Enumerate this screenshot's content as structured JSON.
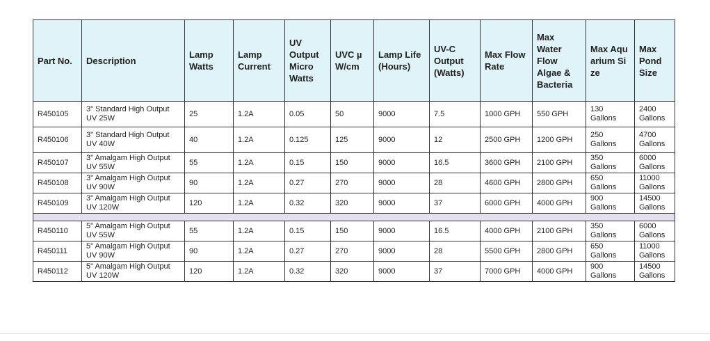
{
  "table": {
    "header": [
      "Part No.",
      "Description",
      "Lamp Watts",
      "Lamp Current",
      "UV Output Micro Watts",
      "UVC µW/cm",
      "Lamp Life (Hours)",
      "UV-C Output (Watts)",
      "Max Flow Rate",
      "Max Water Flow Algae & Bacteria",
      "Max Aquarium Size",
      "Max Pond Size"
    ],
    "groups": [
      [
        [
          "R450105",
          "3\" Standard High Output UV 25W",
          "25",
          "1.2A",
          "0.05",
          "50",
          "9000",
          "7.5",
          "1000 GPH",
          "550 GPH",
          "130 Gallons",
          "2400 Gallons"
        ],
        [
          "R450106",
          "3\" Standard High Output UV 40W",
          "40",
          "1.2A",
          "0.125",
          "125",
          "9000",
          "12",
          "2500 GPH",
          "1200 GPH",
          "250 Gallons",
          "4700 Gallons"
        ],
        [
          "R450107",
          "3\" Amalgam High Output UV 55W",
          "55",
          "1.2A",
          "0.15",
          "150",
          "9000",
          "16.5",
          "3600 GPH",
          "2100 GPH",
          "350 Gallons",
          "6000 Gallons"
        ],
        [
          "R450108",
          "3\" Amalgam High Output UV 90W",
          "90",
          "1.2A",
          "0.27",
          "270",
          "9000",
          "28",
          "4600 GPH",
          "2800 GPH",
          "650 Gallons",
          "11000 Gallons"
        ],
        [
          "R450109",
          "3\" Amalgam High Output UV 120W",
          "120",
          "1.2A",
          "0.32",
          "320",
          "9000",
          "37",
          "6000 GPH",
          "4000 GPH",
          "900 Gallons",
          "14500 Gallons"
        ]
      ],
      [
        [
          "R450110",
          "5\" Amalgam High Output UV 55W",
          "55",
          "1.2A",
          "0.15",
          "150",
          "9000",
          "16.5",
          "4000 GPH",
          "2100 GPH",
          "350 Gallons",
          "6000 Gallons"
        ],
        [
          "R450111",
          "5\" Amalgam High Output UV 90W",
          "90",
          "1.2A",
          "0.27",
          "270",
          "9000",
          "28",
          "5500 GPH",
          "2800 GPH",
          "650 Gallons",
          "11000 Gallons"
        ],
        [
          "R450112",
          "5\" Amalgam High Output UV 120W",
          "120",
          "1.2A",
          "0.32",
          "320",
          "9000",
          "37",
          "7000 GPH",
          "4000 GPH",
          "900 Gallons",
          "14500 Gallons"
        ]
      ]
    ]
  }
}
